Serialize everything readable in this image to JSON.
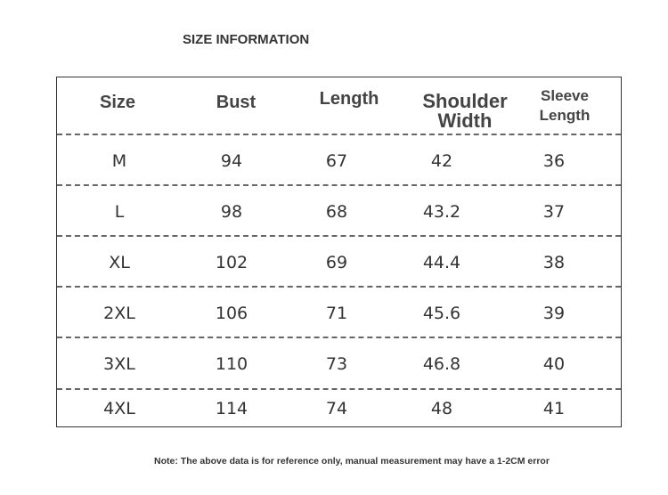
{
  "title": "SIZE INFORMATION",
  "table": {
    "header": [
      "Size",
      "Bust",
      "Length",
      "Shoulder Width",
      "Sleeve Length"
    ],
    "rows": [
      [
        "M",
        94,
        67,
        42,
        36
      ],
      [
        "L",
        98,
        68,
        43.2,
        37
      ],
      [
        "XL",
        102,
        69,
        44.4,
        38
      ],
      [
        "2XL",
        106,
        71,
        45.6,
        39
      ],
      [
        "3XL",
        110,
        73,
        46.8,
        40
      ],
      [
        "4XL",
        114,
        74,
        48,
        41
      ]
    ]
  },
  "note": "Note: The above data is for reference only, manual measurement may have a 1-2CM error"
}
